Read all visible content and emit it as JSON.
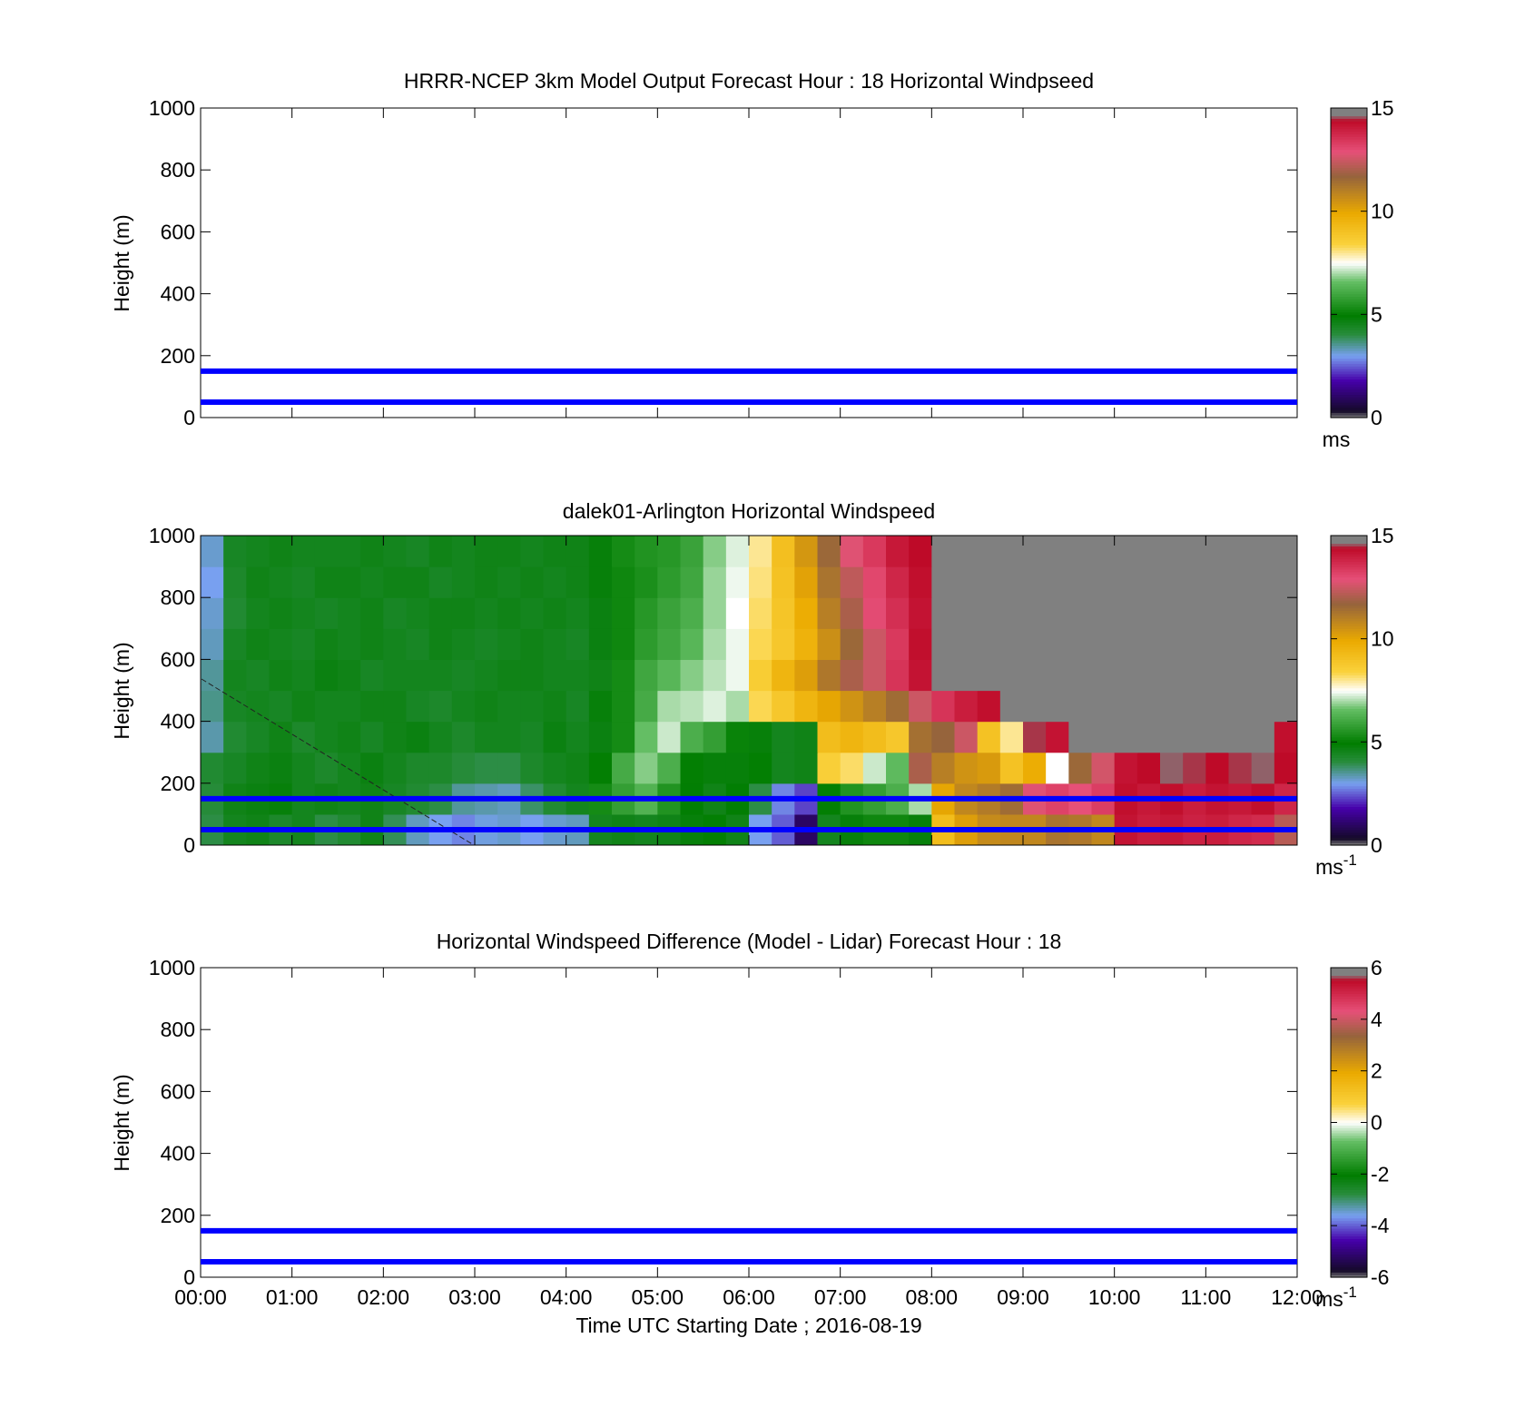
{
  "figure": {
    "xlabel": "Time UTC  Starting Date ; 2016-08-19"
  },
  "chart_data": [
    {
      "type": "heatmap",
      "title": "HRRR-NCEP 3km Model Output   Forecast Hour : 18 Horizontal Windpseed",
      "ylabel": "Height (m)",
      "xlim": [
        "00:00",
        "12:00"
      ],
      "ylim": [
        0,
        1000
      ],
      "yticks": [
        "0",
        "200",
        "400",
        "600",
        "800",
        "1000"
      ],
      "show_xticklabels": false,
      "colorbar": {
        "min": 0,
        "max": 15,
        "ticks": [
          "0",
          "5",
          "10",
          "15"
        ],
        "label": "ms",
        "label_sup": ""
      },
      "reference_lines_m": [
        50,
        150
      ],
      "reference_line_color": "#0000ff",
      "data": []
    },
    {
      "type": "heatmap",
      "title": "dalek01-Arlington  Horizontal Windspeed",
      "ylabel": "Height (m)",
      "xlim": [
        "00:00",
        "12:00"
      ],
      "ylim": [
        0,
        1000
      ],
      "yticks": [
        "0",
        "200",
        "400",
        "600",
        "800",
        "1000"
      ],
      "show_xticklabels": false,
      "colorbar": {
        "min": 0,
        "max": 15,
        "ticks": [
          "0",
          "5",
          "10",
          "15"
        ],
        "label": "ms",
        "label_sup": "-1"
      },
      "reference_lines_m": [
        50,
        150
      ],
      "reference_line_color": "#0000ff",
      "time_bins_min": [
        0,
        15,
        30,
        45,
        60,
        75,
        90,
        105,
        120,
        135,
        150,
        165,
        180,
        195,
        210,
        225,
        240,
        255,
        270,
        285,
        300,
        315,
        330,
        345,
        360,
        375,
        390,
        405,
        420,
        435,
        450,
        465,
        480,
        495,
        510,
        525,
        540,
        555,
        570,
        585,
        600,
        615,
        630,
        645,
        660,
        675,
        690,
        705
      ],
      "time_bin_width_min": 15,
      "height_bins_m": [
        0,
        100,
        200,
        300,
        400,
        500,
        600,
        700,
        800,
        900
      ],
      "height_bin_width_m": 100,
      "no_data_color": "#808080",
      "windspeed_ms": [
        [
          4.0,
          4.5,
          4.6,
          4.3,
          4.5,
          4.0,
          4.2,
          4.6,
          3.9,
          3.3,
          3.0,
          2.8,
          3.1,
          3.2,
          3.0,
          3.2,
          3.3,
          4.5,
          4.6,
          4.5,
          4.6,
          4.8,
          5.0,
          4.6,
          3.0,
          2.5,
          1.0,
          4.5,
          4.8,
          5.2,
          5.2,
          4.8,
          9.2,
          10.2,
          10.7,
          10.8,
          10.8,
          11.3,
          11.2,
          10.8,
          14.2,
          14.0,
          14.1,
          13.9,
          14.0,
          13.8,
          13.7,
          12.2
        ],
        [
          4.1,
          4.6,
          4.7,
          4.8,
          4.5,
          4.6,
          4.5,
          4.6,
          4.4,
          4.2,
          4.0,
          3.5,
          3.4,
          3.3,
          3.8,
          4.2,
          4.5,
          5.3,
          5.8,
          6.3,
          5.5,
          4.9,
          4.6,
          4.9,
          4.0,
          2.8,
          2.3,
          5.0,
          5.5,
          5.8,
          6.2,
          7.0,
          10.0,
          10.8,
          11.1,
          11.5,
          12.8,
          13.2,
          12.9,
          13.3,
          14.3,
          14.1,
          14.3,
          14.0,
          14.2,
          14.1,
          14.3,
          13.8
        ],
        [
          4.2,
          4.4,
          4.6,
          4.7,
          4.5,
          4.3,
          4.5,
          4.7,
          4.5,
          4.3,
          4.3,
          4.1,
          4.0,
          4.0,
          4.3,
          4.5,
          4.6,
          5.0,
          6.1,
          6.8,
          6.2,
          5.0,
          4.8,
          4.8,
          5.0,
          4.5,
          4.6,
          8.5,
          8.2,
          7.2,
          6.5,
          12.0,
          11.0,
          10.5,
          10.3,
          9.0,
          9.8,
          7.5,
          11.6,
          12.6,
          14.2,
          14.4,
          14.6,
          14.5,
          14.4,
          14.5,
          14.6,
          14.4
        ],
        [
          3.4,
          4.2,
          4.4,
          4.6,
          4.3,
          4.5,
          4.6,
          4.4,
          4.6,
          4.7,
          4.5,
          4.3,
          4.5,
          4.5,
          4.4,
          4.7,
          4.5,
          4.7,
          5.3,
          6.6,
          7.2,
          6.2,
          5.8,
          5.1,
          4.8,
          4.5,
          4.6,
          9.2,
          9.5,
          9.2,
          8.8,
          11.4,
          11.7,
          12.5,
          9.0,
          8.0,
          14.5,
          14.2,
          14.7,
          null,
          null,
          null,
          null,
          null,
          null,
          null,
          null,
          14.3
        ],
        [
          3.6,
          4.4,
          4.5,
          4.4,
          4.6,
          4.5,
          4.5,
          4.6,
          4.6,
          4.4,
          4.3,
          4.5,
          4.6,
          4.5,
          4.5,
          4.6,
          4.4,
          4.8,
          5.3,
          6.1,
          7.0,
          7.1,
          7.3,
          7.0,
          8.3,
          8.8,
          9.5,
          10.0,
          10.5,
          11.0,
          11.5,
          12.5,
          13.5,
          14.0,
          14.3,
          null,
          null,
          null,
          null,
          null,
          null,
          null,
          null,
          null,
          null,
          null,
          null,
          null
        ],
        [
          3.5,
          4.5,
          4.4,
          4.6,
          4.5,
          4.7,
          4.6,
          4.4,
          4.5,
          4.5,
          4.5,
          4.4,
          4.5,
          4.6,
          4.6,
          4.5,
          4.5,
          4.6,
          5.3,
          6.0,
          6.4,
          6.8,
          7.1,
          7.4,
          8.6,
          9.5,
          10.2,
          11.2,
          12.0,
          12.5,
          13.5,
          14.2,
          null,
          null,
          null,
          null,
          null,
          null,
          null,
          null,
          null,
          null,
          null,
          null,
          null,
          null,
          null,
          null
        ],
        [
          3.3,
          4.4,
          4.6,
          4.5,
          4.4,
          4.6,
          4.5,
          4.6,
          4.5,
          4.4,
          4.6,
          4.5,
          4.4,
          4.5,
          4.6,
          4.5,
          4.4,
          4.7,
          5.2,
          5.7,
          6.0,
          6.4,
          7.0,
          7.4,
          8.3,
          8.8,
          9.6,
          10.6,
          11.6,
          12.5,
          13.4,
          14.3,
          null,
          null,
          null,
          null,
          null,
          null,
          null,
          null,
          null,
          null,
          null,
          null,
          null,
          null,
          null,
          null
        ],
        [
          3.2,
          4.2,
          4.5,
          4.6,
          4.5,
          4.4,
          4.5,
          4.6,
          4.4,
          4.5,
          4.6,
          4.6,
          4.5,
          4.6,
          4.5,
          4.6,
          4.5,
          4.7,
          5.2,
          5.6,
          5.9,
          6.2,
          6.9,
          7.5,
          8.2,
          8.9,
          9.8,
          11.0,
          12.0,
          13.0,
          13.6,
          14.2,
          null,
          null,
          null,
          null,
          null,
          null,
          null,
          null,
          null,
          null,
          null,
          null,
          null,
          null,
          null,
          null
        ],
        [
          3.0,
          4.3,
          4.6,
          4.5,
          4.4,
          4.6,
          4.6,
          4.5,
          4.6,
          4.6,
          4.4,
          4.5,
          4.6,
          4.5,
          4.6,
          4.5,
          4.6,
          4.8,
          5.2,
          5.4,
          5.7,
          6.0,
          6.9,
          7.4,
          8.1,
          9.0,
          10.1,
          11.3,
          12.3,
          13.1,
          13.8,
          14.3,
          null,
          null,
          null,
          null,
          null,
          null,
          null,
          null,
          null,
          null,
          null,
          null,
          null,
          null,
          null,
          null
        ],
        [
          3.2,
          4.4,
          4.5,
          4.6,
          4.5,
          4.5,
          4.5,
          4.6,
          4.5,
          4.4,
          4.6,
          4.5,
          4.6,
          4.6,
          4.5,
          4.6,
          4.6,
          4.8,
          5.3,
          5.5,
          5.6,
          5.9,
          6.8,
          7.3,
          8.0,
          9.1,
          10.4,
          11.6,
          12.8,
          13.4,
          14.1,
          14.4,
          null,
          null,
          null,
          null,
          null,
          null,
          null,
          null,
          null,
          null,
          null,
          null,
          null,
          null,
          null,
          null
        ]
      ]
    },
    {
      "type": "heatmap",
      "title": "Horizontal Windspeed Difference (Model - Lidar) Forecast Hour : 18",
      "ylabel": "Height (m)",
      "xlim": [
        "00:00",
        "12:00"
      ],
      "ylim": [
        0,
        1000
      ],
      "yticks": [
        "0",
        "200",
        "400",
        "600",
        "800",
        "1000"
      ],
      "xticks": [
        "00:00",
        "01:00",
        "02:00",
        "03:00",
        "04:00",
        "05:00",
        "06:00",
        "07:00",
        "08:00",
        "09:00",
        "10:00",
        "11:00",
        "12:00"
      ],
      "show_xticklabels": true,
      "colorbar": {
        "min": -6,
        "max": 6,
        "ticks": [
          "-6",
          "-4",
          "-2",
          "0",
          "2",
          "4",
          "6"
        ],
        "label": "ms",
        "label_sup": "-1"
      },
      "reference_lines_m": [
        50,
        150
      ],
      "reference_line_color": "#0000ff",
      "data": []
    }
  ]
}
